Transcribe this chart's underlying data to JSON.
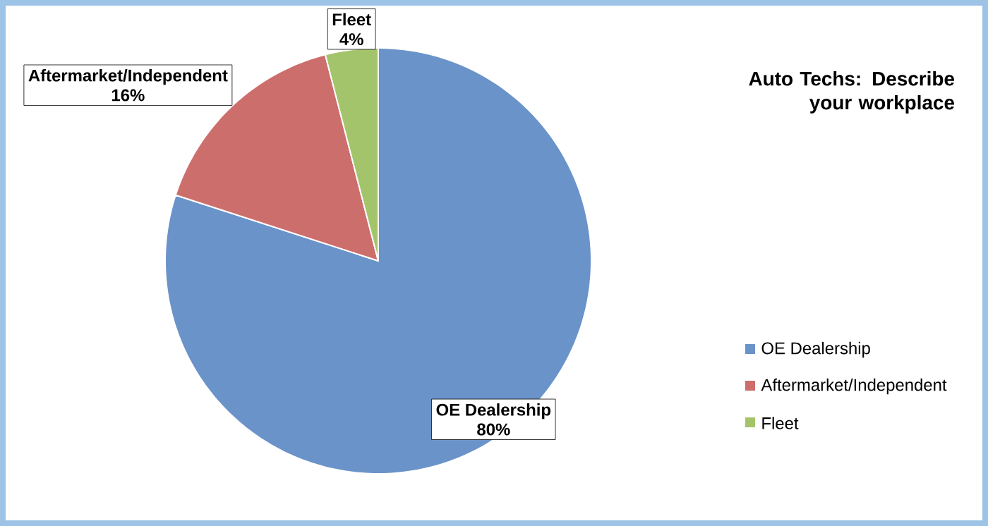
{
  "chart_data": {
    "type": "pie",
    "title": "Auto Techs: Describe your workplace",
    "categories": [
      "OE Dealership",
      "Aftermarket/Independent",
      "Fleet"
    ],
    "values": [
      80,
      16,
      4
    ],
    "value_labels": [
      "80%",
      "16%",
      "4%"
    ],
    "colors": [
      "#6a93c9",
      "#cc6e6c",
      "#a3c46b"
    ],
    "legend": "right"
  }
}
